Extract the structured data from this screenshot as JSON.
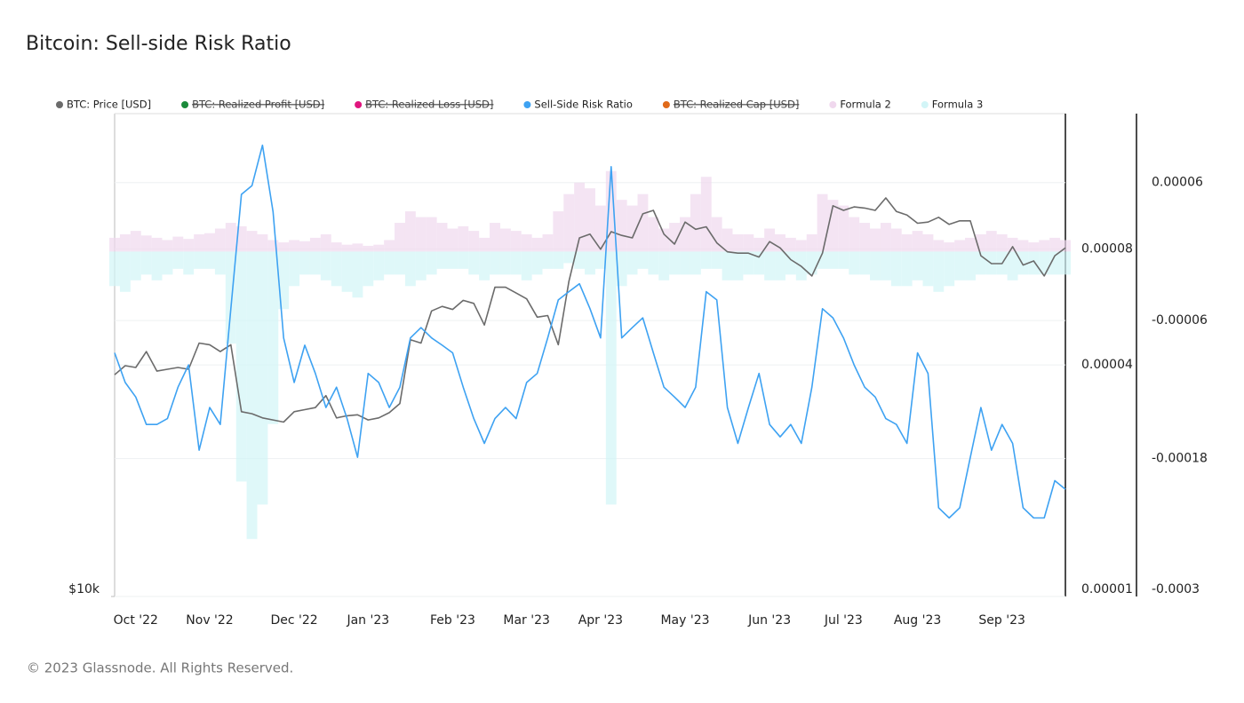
{
  "chart_data": {
    "type": "line",
    "title": "Bitcoin: Sell-side Risk Ratio",
    "categories": [
      null,
      null,
      "Oct '22",
      null,
      null,
      null,
      null,
      null,
      null,
      "Nov '22",
      null,
      null,
      null,
      null,
      null,
      null,
      null,
      "Dec '22",
      null,
      null,
      null,
      null,
      null,
      null,
      "Jan '23",
      null,
      null,
      null,
      null,
      null,
      null,
      null,
      "Feb '23",
      null,
      null,
      null,
      null,
      null,
      null,
      "Mar '23",
      null,
      null,
      null,
      null,
      null,
      null,
      "Apr '23",
      null,
      null,
      null,
      null,
      null,
      null,
      null,
      "May '23",
      null,
      null,
      null,
      null,
      null,
      null,
      null,
      "Jun '23",
      null,
      null,
      null,
      null,
      null,
      null,
      "Jul '23",
      null,
      null,
      null,
      null,
      null,
      null,
      "Aug '23",
      null,
      null,
      null,
      null,
      null,
      null,
      null,
      "Sep '23",
      null,
      null,
      null,
      null,
      null,
      null
    ],
    "series": [
      {
        "name": "BTC: Price [USD]",
        "color": "#6b6b6b",
        "axis": "y",
        "visible": true,
        "values": [
          18900,
          19400,
          19300,
          20200,
          19100,
          19200,
          19300,
          19200,
          20700,
          20600,
          20200,
          20600,
          17000,
          16900,
          16700,
          16600,
          16500,
          17000,
          17100,
          17200,
          17800,
          16700,
          16800,
          16850,
          16600,
          16700,
          16950,
          17400,
          20900,
          20700,
          22700,
          23000,
          22800,
          23400,
          23200,
          21800,
          24300,
          24300,
          23900,
          23500,
          22300,
          22400,
          20600,
          24700,
          28000,
          28300,
          27100,
          28500,
          28200,
          28000,
          30000,
          30300,
          28300,
          27500,
          29300,
          28700,
          28900,
          27600,
          26900,
          26800,
          26800,
          26500,
          27700,
          27200,
          26300,
          25800,
          25100,
          26800,
          30700,
          30300,
          30600,
          30500,
          30300,
          31400,
          30200,
          29900,
          29200,
          29300,
          29700,
          29100,
          29400,
          29400,
          26600,
          26000,
          26000,
          27300,
          25900,
          26200,
          25100,
          26600,
          27200
        ]
      },
      {
        "name": "BTC: Realized Profit [USD]",
        "color": "#1a8a3a",
        "visible": false
      },
      {
        "name": "BTC: Realized Loss [USD]",
        "color": "#e0157e",
        "visible": false
      },
      {
        "name": "Sell-Side Risk Ratio",
        "color": "#3ea2f2",
        "axis": "y2",
        "visible": true,
        "values": [
          4.3e-05,
          3.6e-05,
          3.3e-05,
          2.8e-05,
          2.8e-05,
          2.9e-05,
          3.5e-05,
          4e-05,
          2.4e-05,
          3.1e-05,
          2.8e-05,
          5.6e-05,
          0.000111,
          0.000117,
          0.000149,
          0.0001,
          4.7e-05,
          3.6e-05,
          4.5e-05,
          3.8e-05,
          3.1e-05,
          3.5e-05,
          2.9e-05,
          2.3e-05,
          3.8e-05,
          3.6e-05,
          3.1e-05,
          3.5e-05,
          4.7e-05,
          5e-05,
          4.7e-05,
          4.5e-05,
          4.3e-05,
          3.5e-05,
          2.9e-05,
          2.5e-05,
          2.9e-05,
          3.1e-05,
          2.9e-05,
          3.6e-05,
          3.8e-05,
          4.7e-05,
          5.9e-05,
          6.2e-05,
          6.5e-05,
          5.6e-05,
          4.7e-05,
          0.000131,
          4.7e-05,
          5e-05,
          5.3e-05,
          4.3e-05,
          3.5e-05,
          3.3e-05,
          3.1e-05,
          3.5e-05,
          6.2e-05,
          5.9e-05,
          3.1e-05,
          2.5e-05,
          3.1e-05,
          3.8e-05,
          2.8e-05,
          2.6e-05,
          2.8e-05,
          2.5e-05,
          3.5e-05,
          5.6e-05,
          5.3e-05,
          4.7e-05,
          4e-05,
          3.5e-05,
          3.3e-05,
          2.9e-05,
          2.8e-05,
          2.5e-05,
          4.3e-05,
          3.8e-05,
          1.7e-05,
          1.6e-05,
          1.7e-05,
          2.3e-05,
          3.1e-05,
          2.4e-05,
          2.8e-05,
          2.5e-05,
          1.7e-05,
          1.6e-05,
          1.6e-05,
          2e-05,
          1.9e-05
        ]
      },
      {
        "name": "BTC: Realized Cap [USD]",
        "color": "#e06a1a",
        "visible": false
      },
      {
        "name": "Formula 2",
        "color": "#f0d8ee",
        "axis": "y3",
        "visible": true,
        "type": "bar",
        "values": [
          1.2e-05,
          1.5e-05,
          1.8e-05,
          1.4e-05,
          1.2e-05,
          1e-05,
          1.3e-05,
          1.1e-05,
          1.5e-05,
          1.6e-05,
          2e-05,
          2.5e-05,
          2.2e-05,
          1.8e-05,
          1.5e-05,
          1e-05,
          8e-06,
          1e-05,
          9e-06,
          1.2e-05,
          1.5e-05,
          8e-06,
          6e-06,
          7e-06,
          5e-06,
          6e-06,
          1e-05,
          2.5e-05,
          3.5e-05,
          3e-05,
          3e-05,
          2.5e-05,
          2e-05,
          2.2e-05,
          1.8e-05,
          1.2e-05,
          2.5e-05,
          2e-05,
          1.8e-05,
          1.5e-05,
          1.2e-05,
          1.5e-05,
          3.5e-05,
          5e-05,
          6e-05,
          5.5e-05,
          4e-05,
          7e-05,
          4.5e-05,
          4e-05,
          5e-05,
          3e-05,
          2e-05,
          2.5e-05,
          3e-05,
          5e-05,
          6.5e-05,
          3e-05,
          2e-05,
          1.5e-05,
          1.5e-05,
          1.2e-05,
          2e-05,
          1.5e-05,
          1.2e-05,
          1e-05,
          1.5e-05,
          5e-05,
          4.5e-05,
          4e-05,
          3e-05,
          2.5e-05,
          2e-05,
          2.5e-05,
          2e-05,
          1.5e-05,
          1.8e-05,
          1.5e-05,
          1e-05,
          8e-06,
          1e-05,
          1.2e-05,
          1.5e-05,
          1.8e-05,
          1.5e-05,
          1.2e-05,
          1e-05,
          8e-06,
          1e-05,
          1.2e-05,
          1e-05
        ]
      },
      {
        "name": "Formula 3",
        "color": "#d2f5f7",
        "axis": "y3",
        "visible": true,
        "type": "bar",
        "values": [
          -3e-05,
          -3.5e-05,
          -2.5e-05,
          -2e-05,
          -2.5e-05,
          -2e-05,
          -1.5e-05,
          -2e-05,
          -1.5e-05,
          -1.5e-05,
          -2e-05,
          -8e-05,
          -0.0002,
          -0.00025,
          -0.00022,
          -0.00015,
          -5e-05,
          -3e-05,
          -2e-05,
          -2e-05,
          -2.5e-05,
          -3e-05,
          -3.5e-05,
          -4e-05,
          -3e-05,
          -2.5e-05,
          -2e-05,
          -2e-05,
          -3e-05,
          -2.5e-05,
          -2e-05,
          -1.5e-05,
          -1.5e-05,
          -1.5e-05,
          -2e-05,
          -2.5e-05,
          -2e-05,
          -2e-05,
          -2e-05,
          -2.5e-05,
          -2e-05,
          -1.5e-05,
          -1.5e-05,
          -1e-05,
          -1.5e-05,
          -2e-05,
          -1.5e-05,
          -0.00022,
          -3e-05,
          -2e-05,
          -1.5e-05,
          -2e-05,
          -2.5e-05,
          -2e-05,
          -2e-05,
          -2e-05,
          -1.5e-05,
          -1.5e-05,
          -2.5e-05,
          -2.5e-05,
          -2e-05,
          -2e-05,
          -2.5e-05,
          -2.5e-05,
          -2e-05,
          -2.5e-05,
          -2e-05,
          -1.5e-05,
          -1.5e-05,
          -1.5e-05,
          -2e-05,
          -2e-05,
          -2.5e-05,
          -2.5e-05,
          -3e-05,
          -3e-05,
          -2.5e-05,
          -3e-05,
          -3.5e-05,
          -3e-05,
          -2.5e-05,
          -2.5e-05,
          -2e-05,
          -2e-05,
          -2e-05,
          -2.5e-05,
          -2e-05,
          -2e-05,
          -2e-05,
          -2e-05,
          -2e-05
        ]
      }
    ],
    "ylim": [
      10000,
      40000
    ],
    "ylog": true,
    "yticks": [
      {
        "value": 10000,
        "label": "$10k"
      }
    ],
    "y2lim": [
      1e-05,
      0.00018
    ],
    "y2log": true,
    "y2ticks": [
      1e-05,
      4e-05,
      8e-05
    ],
    "y3lim": [
      -0.0003,
      0.00012
    ],
    "y3ticks": [
      6e-05,
      -6e-05,
      -0.00018,
      -0.0003
    ],
    "grid": true,
    "legend_position": "top",
    "footer": "© 2023 Glassnode. All Rights Reserved."
  }
}
